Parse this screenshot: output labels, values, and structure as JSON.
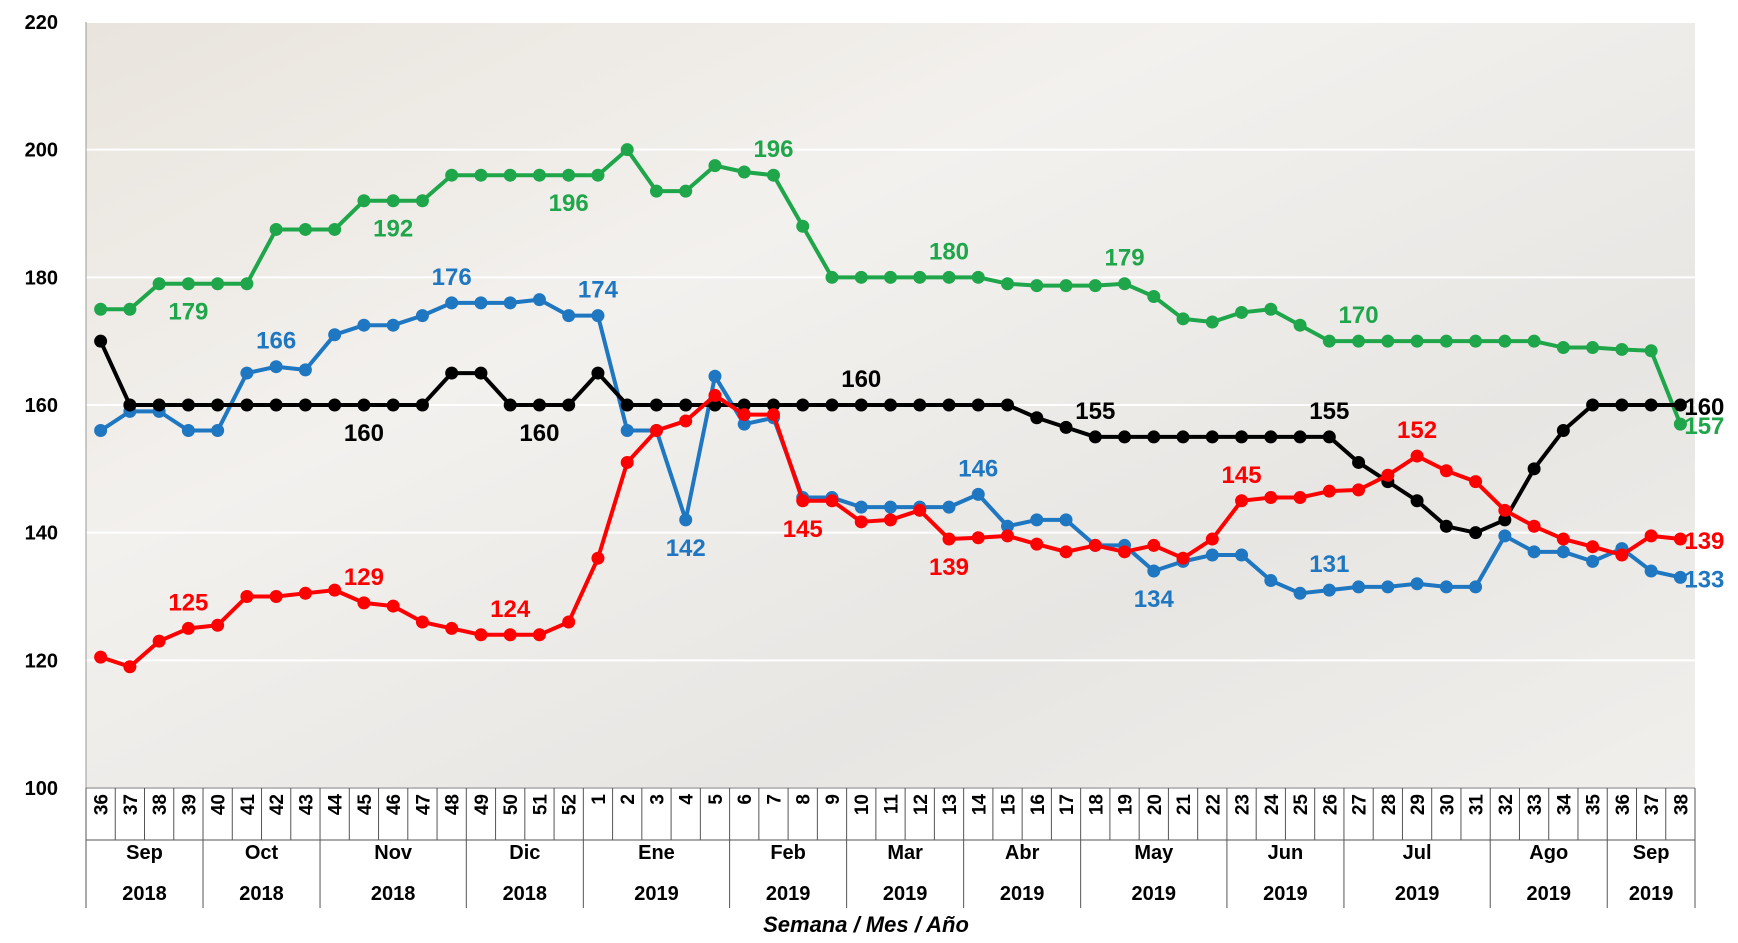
{
  "chart_data": {
    "type": "line",
    "x_title": "Semana / Mes / Año",
    "ylim": [
      100,
      220
    ],
    "yticks": [
      100,
      120,
      140,
      160,
      180,
      200,
      220
    ],
    "grid": true,
    "groups": [
      {
        "month": "Sep",
        "year": "2018",
        "weeks": [
          "36",
          "37",
          "38",
          "39"
        ]
      },
      {
        "month": "Oct",
        "year": "2018",
        "weeks": [
          "40",
          "41",
          "42",
          "43"
        ]
      },
      {
        "month": "Nov",
        "year": "2018",
        "weeks": [
          "44",
          "45",
          "46",
          "47",
          "48"
        ]
      },
      {
        "month": "Dic",
        "year": "2018",
        "weeks": [
          "49",
          "50",
          "51",
          "52"
        ]
      },
      {
        "month": "Ene",
        "year": "2019",
        "weeks": [
          "1",
          "2",
          "3",
          "4",
          "5"
        ]
      },
      {
        "month": "Feb",
        "year": "2019",
        "weeks": [
          "6",
          "7",
          "8",
          "9"
        ]
      },
      {
        "month": "Mar",
        "year": "2019",
        "weeks": [
          "10",
          "11",
          "12",
          "13"
        ]
      },
      {
        "month": "Abr",
        "year": "2019",
        "weeks": [
          "14",
          "15",
          "16",
          "17"
        ]
      },
      {
        "month": "May",
        "year": "2019",
        "weeks": [
          "18",
          "19",
          "20",
          "21",
          "22"
        ]
      },
      {
        "month": "Jun",
        "year": "2019",
        "weeks": [
          "23",
          "24",
          "25",
          "26"
        ]
      },
      {
        "month": "Jul",
        "year": "2019",
        "weeks": [
          "27",
          "28",
          "29",
          "30",
          "31"
        ]
      },
      {
        "month": "Ago",
        "year": "2019",
        "weeks": [
          "32",
          "33",
          "34",
          "35"
        ]
      },
      {
        "month": "Sep",
        "year": "2019",
        "weeks": [
          "36",
          "37",
          "38"
        ]
      }
    ],
    "series": [
      {
        "color": "#1fa64a",
        "values": [
          175,
          175,
          179,
          179,
          179,
          179,
          187.5,
          187.5,
          187.5,
          192,
          192,
          192,
          196,
          196,
          196,
          196,
          196,
          196,
          200,
          193.5,
          193.5,
          197.5,
          196.5,
          196,
          188,
          180,
          180,
          180,
          180,
          180,
          180,
          179,
          178.7,
          178.7,
          178.7,
          179,
          177,
          173.5,
          173,
          174.5,
          175,
          172.5,
          170,
          170,
          170,
          170,
          170,
          170,
          170,
          170,
          169,
          169,
          168.7,
          168.5,
          157
        ],
        "value_labels": [
          null,
          null,
          null,
          "179",
          null,
          null,
          null,
          null,
          null,
          null,
          "192",
          null,
          null,
          null,
          null,
          null,
          "196",
          null,
          null,
          null,
          null,
          null,
          null,
          "196",
          null,
          null,
          null,
          null,
          null,
          "180",
          null,
          null,
          null,
          null,
          null,
          "179",
          null,
          null,
          null,
          null,
          null,
          null,
          null,
          "170",
          null,
          null,
          null,
          null,
          null,
          null,
          null,
          null,
          null,
          null,
          "157"
        ]
      },
      {
        "color": "#1f77c1",
        "values": [
          156,
          159,
          159,
          156,
          156,
          165,
          166,
          165.5,
          171,
          172.5,
          172.5,
          174,
          176,
          176,
          176,
          176.5,
          174,
          174,
          156,
          156,
          142,
          164.5,
          157,
          158,
          145.5,
          145.5,
          144,
          144,
          144,
          144,
          146,
          141,
          142,
          142,
          138,
          138,
          134,
          135.5,
          136.5,
          136.5,
          132.5,
          130.5,
          131,
          131.5,
          131.5,
          132,
          131.5,
          131.5,
          139.5,
          137,
          137,
          135.5,
          137.5,
          134,
          133
        ],
        "value_labels": [
          null,
          null,
          null,
          null,
          null,
          null,
          "166",
          null,
          null,
          null,
          null,
          null,
          "176",
          null,
          null,
          null,
          null,
          "174",
          null,
          null,
          "142",
          null,
          null,
          null,
          null,
          null,
          null,
          null,
          null,
          null,
          "146",
          null,
          null,
          null,
          null,
          null,
          "134",
          null,
          null,
          null,
          null,
          null,
          "131",
          null,
          null,
          null,
          null,
          null,
          null,
          null,
          null,
          null,
          null,
          null,
          "133"
        ]
      },
      {
        "color": "#000000",
        "values": [
          170,
          160,
          160,
          160,
          160,
          160,
          160,
          160,
          160,
          160,
          160,
          160,
          165,
          165,
          160,
          160,
          160,
          165,
          160,
          160,
          160,
          160,
          160,
          160,
          160,
          160,
          160,
          160,
          160,
          160,
          160,
          160,
          158,
          156.5,
          155,
          155,
          155,
          155,
          155,
          155,
          155,
          155,
          155,
          151,
          148,
          145,
          141,
          140,
          142,
          150,
          156,
          160,
          160,
          160,
          160
        ],
        "value_labels": [
          null,
          null,
          null,
          null,
          null,
          null,
          null,
          null,
          null,
          "160",
          null,
          null,
          null,
          null,
          null,
          "160",
          null,
          null,
          null,
          null,
          null,
          null,
          null,
          null,
          null,
          null,
          "160",
          null,
          null,
          null,
          null,
          null,
          null,
          null,
          "155",
          null,
          null,
          null,
          null,
          null,
          null,
          null,
          "155",
          null,
          null,
          null,
          null,
          null,
          null,
          null,
          null,
          null,
          null,
          null,
          "160"
        ]
      },
      {
        "color": "#ff0000",
        "values": [
          120.5,
          119,
          123,
          125,
          125.5,
          130,
          130,
          130.5,
          131,
          129,
          128.5,
          126,
          125,
          124,
          124,
          124,
          126,
          136,
          151,
          156,
          157.5,
          161.5,
          158.5,
          158.5,
          145,
          145,
          141.7,
          142,
          143.5,
          139,
          139.2,
          139.5,
          138.2,
          137,
          138,
          137,
          138,
          136,
          139,
          145,
          145.5,
          145.5,
          146.5,
          146.7,
          149,
          152,
          149.7,
          148,
          143.5,
          141,
          139,
          137.8,
          136.5,
          139.5,
          139
        ],
        "value_labels": [
          null,
          null,
          null,
          "125",
          null,
          null,
          null,
          null,
          null,
          "129",
          null,
          null,
          null,
          null,
          "124",
          null,
          null,
          null,
          null,
          null,
          null,
          null,
          null,
          null,
          "145",
          null,
          null,
          null,
          null,
          "139",
          null,
          null,
          null,
          null,
          null,
          null,
          null,
          null,
          null,
          "145",
          null,
          null,
          null,
          null,
          null,
          "152",
          null,
          null,
          null,
          null,
          null,
          null,
          null,
          null,
          "139"
        ]
      }
    ]
  }
}
